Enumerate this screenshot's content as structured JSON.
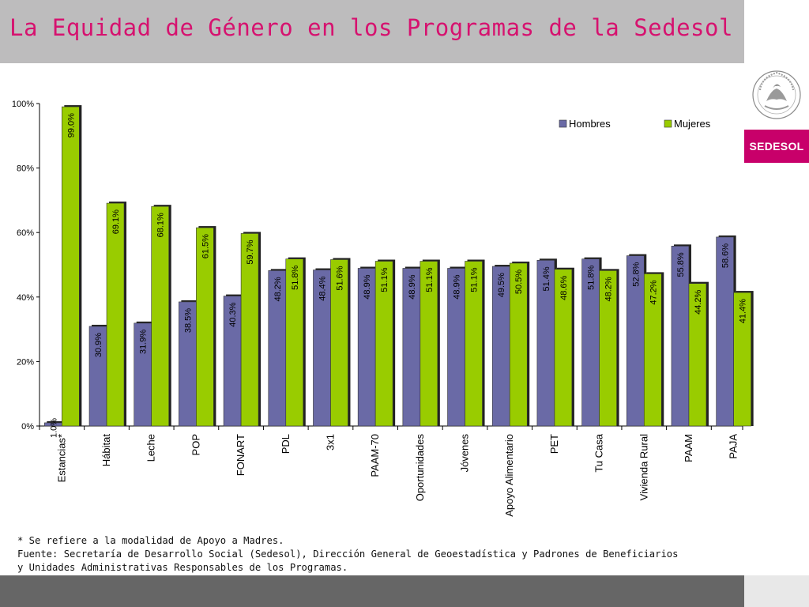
{
  "header": {
    "title": "La Equidad de Género en los Programas de la Sedesol"
  },
  "branding": {
    "logo_text": "SEDESOL",
    "seal_text": "ESTADOS UNIDOS MEXICANOS"
  },
  "footnote": {
    "line1": "* Se refiere a la modalidad de Apoyo a Madres.",
    "line2": "Fuente: Secretaría de Desarrollo Social (Sedesol), Dirección General de Geoestadística y Padrones de Beneficiarios",
    "line3": "y Unidades Administrativas Responsables de los Programas."
  },
  "colors": {
    "title": "#d6126f",
    "hombres": "#6a6aa6",
    "mujeres": "#99cc00",
    "logo_bg": "#c8006a"
  },
  "chart_data": {
    "type": "bar",
    "title": "",
    "xlabel": "",
    "ylabel": "",
    "ylim": [
      0,
      100
    ],
    "yticks": [
      "0%",
      "20%",
      "40%",
      "60%",
      "80%",
      "100%"
    ],
    "grid": false,
    "legend": "top-right",
    "categories": [
      "Estancias*",
      "Hábitat",
      "Leche",
      "POP",
      "FONART",
      "PDL",
      "3x1",
      "PAAM-70",
      "Oportunidades",
      "Jóvenes",
      "Apoyo Alimentario",
      "PET",
      "Tu Casa",
      "Vivienda Rural",
      "PAAM",
      "PAJA"
    ],
    "series": [
      {
        "name": "Hombres",
        "values": [
          1.0,
          30.9,
          31.9,
          38.5,
          40.3,
          48.2,
          48.4,
          48.9,
          48.9,
          48.9,
          49.5,
          51.4,
          51.8,
          52.8,
          55.8,
          58.6
        ],
        "labels": [
          "1.0%",
          "30.9%",
          "31.9%",
          "38.5%",
          "40.3%",
          "48.2%",
          "48.4%",
          "48.9%",
          "48.9%",
          "48.9%",
          "49.5%",
          "51.4%",
          "51.8%",
          "52.8%",
          "55.8%",
          "58.6%"
        ]
      },
      {
        "name": "Mujeres",
        "values": [
          99.0,
          69.1,
          68.1,
          61.5,
          59.7,
          51.8,
          51.6,
          51.1,
          51.1,
          51.1,
          50.5,
          48.6,
          48.2,
          47.2,
          44.2,
          41.4
        ],
        "labels": [
          "99.0%",
          "69.1%",
          "68.1%",
          "61.5%",
          "59.7%",
          "51.8%",
          "51.6%",
          "51.1%",
          "51.1%",
          "51.1%",
          "50.5%",
          "48.6%",
          "48.2%",
          "47.2%",
          "44.2%",
          "41.4%"
        ]
      }
    ]
  }
}
